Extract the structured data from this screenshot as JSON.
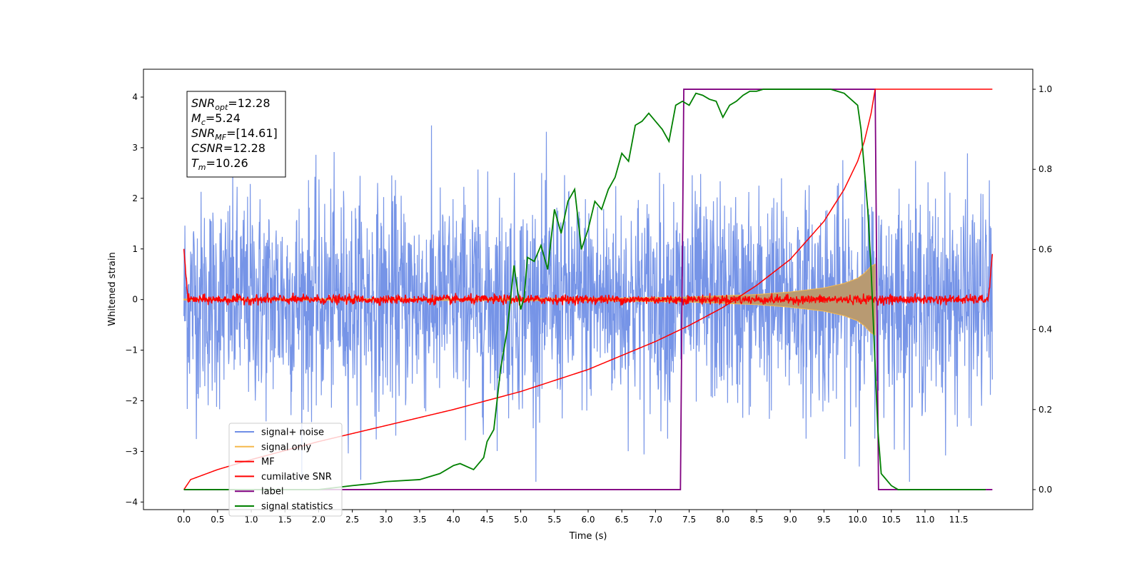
{
  "chart_data": {
    "type": "line",
    "title": "",
    "xlabel": "Time (s)",
    "ylabel": "Whitened strain",
    "y2label": "",
    "xlim": [
      -0.6,
      12.6
    ],
    "ylim": [
      -4.15,
      4.55
    ],
    "y2lim": [
      -0.05,
      1.05
    ],
    "xticks": [
      0.0,
      0.5,
      1.0,
      1.5,
      2.0,
      2.5,
      3.0,
      3.5,
      4.0,
      4.5,
      5.0,
      5.5,
      6.0,
      6.5,
      7.0,
      7.5,
      8.0,
      8.5,
      9.0,
      9.5,
      10.0,
      10.5,
      11.0,
      11.5
    ],
    "xtick_labels": [
      "0.0",
      "0.5",
      "1.0",
      "1.5",
      "2.0",
      "2.5",
      "3.0",
      "3.5",
      "4.0",
      "4.5",
      "5.0",
      "5.5",
      "6.0",
      "6.5",
      "7.0",
      "7.5",
      "8.0",
      "8.5",
      "9.0",
      "9.5",
      "10.0",
      "10.5",
      "11.0",
      "11.5"
    ],
    "yticks": [
      -4,
      -3,
      -2,
      -1,
      0,
      1,
      2,
      3,
      4
    ],
    "ytick_labels": [
      "−4",
      "−3",
      "−2",
      "−1",
      "0",
      "1",
      "2",
      "3",
      "4"
    ],
    "y2ticks": [
      0.0,
      0.2,
      0.4,
      0.6,
      0.8,
      1.0
    ],
    "y2tick_labels": [
      "0.0",
      "0.2",
      "0.4",
      "0.6",
      "0.8",
      "1.0"
    ],
    "legend_position": "lower-left",
    "grid": false,
    "series": [
      {
        "name": "signal+ noise",
        "axis": "left",
        "color": "#6f8ee6",
        "kind": "noise",
        "x_range": [
          0.0,
          12.0
        ],
        "approx_envelope": [
          -3.6,
          3.6
        ],
        "approx_points": 2400
      },
      {
        "name": "signal only",
        "axis": "left",
        "color": "#f5b94d",
        "kind": "chirp-envelope",
        "x": [
          0.0,
          3.0,
          5.0,
          6.5,
          7.5,
          8.5,
          9.0,
          9.5,
          9.8,
          10.0,
          10.1,
          10.2,
          10.26
        ],
        "envelope": [
          0.01,
          0.015,
          0.02,
          0.03,
          0.05,
          0.1,
          0.15,
          0.23,
          0.32,
          0.42,
          0.52,
          0.66,
          0.7
        ]
      },
      {
        "name": "MF",
        "axis": "left",
        "color": "#ff0000",
        "kind": "noise",
        "x_range": [
          0.0,
          12.0
        ],
        "approx_envelope": [
          -0.12,
          0.15
        ],
        "edge_values": [
          1.0,
          0.9
        ]
      },
      {
        "name": "cumilative SNR",
        "axis": "right",
        "color": "#ff0000",
        "x": [
          0.0,
          0.1,
          0.5,
          1.0,
          2.0,
          3.0,
          4.0,
          5.0,
          6.0,
          7.0,
          7.5,
          8.0,
          8.5,
          9.0,
          9.5,
          9.8,
          10.0,
          10.1,
          10.2,
          10.26,
          12.0
        ],
        "values": [
          0.0,
          0.025,
          0.05,
          0.075,
          0.12,
          0.16,
          0.2,
          0.245,
          0.3,
          0.37,
          0.41,
          0.455,
          0.51,
          0.575,
          0.67,
          0.75,
          0.82,
          0.87,
          0.94,
          1.0,
          1.0
        ]
      },
      {
        "name": "label",
        "axis": "right",
        "color": "#800080",
        "x": [
          0.0,
          7.37,
          7.42,
          10.26,
          10.31,
          12.0
        ],
        "values": [
          0.0,
          0.0,
          1.0,
          1.0,
          0.0,
          0.0
        ]
      },
      {
        "name": "signal statistics",
        "axis": "right",
        "color": "#008000",
        "x": [
          0.0,
          0.5,
          1.0,
          1.5,
          2.0,
          2.5,
          2.8,
          3.0,
          3.5,
          3.8,
          4.0,
          4.1,
          4.3,
          4.45,
          4.5,
          4.6,
          4.7,
          4.8,
          4.9,
          4.95,
          5.0,
          5.05,
          5.1,
          5.2,
          5.3,
          5.4,
          5.5,
          5.6,
          5.7,
          5.8,
          5.9,
          6.0,
          6.1,
          6.2,
          6.3,
          6.4,
          6.5,
          6.6,
          6.7,
          6.8,
          6.9,
          7.0,
          7.1,
          7.2,
          7.3,
          7.4,
          7.5,
          7.6,
          7.7,
          7.8,
          7.9,
          8.0,
          8.1,
          8.2,
          8.3,
          8.4,
          8.5,
          8.6,
          8.8,
          9.0,
          9.2,
          9.4,
          9.6,
          9.8,
          10.0,
          10.05,
          10.1,
          10.15,
          10.2,
          10.25,
          10.3,
          10.35,
          10.4,
          10.5,
          10.6,
          10.8,
          11.0,
          11.5,
          11.9
        ],
        "values": [
          0.0,
          0.0,
          0.0,
          0.0,
          0.0,
          0.01,
          0.015,
          0.02,
          0.025,
          0.04,
          0.06,
          0.065,
          0.05,
          0.08,
          0.12,
          0.15,
          0.3,
          0.4,
          0.56,
          0.5,
          0.45,
          0.48,
          0.58,
          0.57,
          0.61,
          0.55,
          0.7,
          0.64,
          0.72,
          0.75,
          0.6,
          0.65,
          0.72,
          0.7,
          0.75,
          0.78,
          0.84,
          0.82,
          0.91,
          0.92,
          0.94,
          0.92,
          0.9,
          0.87,
          0.96,
          0.97,
          0.96,
          0.99,
          0.985,
          0.975,
          0.97,
          0.93,
          0.96,
          0.97,
          0.985,
          0.995,
          0.995,
          1.0,
          1.0,
          1.0,
          1.0,
          1.0,
          1.0,
          0.99,
          0.96,
          0.9,
          0.8,
          0.7,
          0.55,
          0.35,
          0.15,
          0.04,
          0.03,
          0.01,
          0.0,
          0.0,
          0.0,
          0.0,
          0.0
        ]
      }
    ],
    "annotation": {
      "lines": [
        {
          "sym": "SNR",
          "sub": "opt",
          "value": "=12.28"
        },
        {
          "sym": "M",
          "sub": "c",
          "value": "=5.24"
        },
        {
          "sym": "SNR",
          "sub": "MF",
          "value": "=[14.61]"
        },
        {
          "sym": "CSNR",
          "sub": "",
          "value": "=12.28"
        },
        {
          "sym": "T",
          "sub": "m",
          "value": "=10.26"
        }
      ]
    }
  }
}
